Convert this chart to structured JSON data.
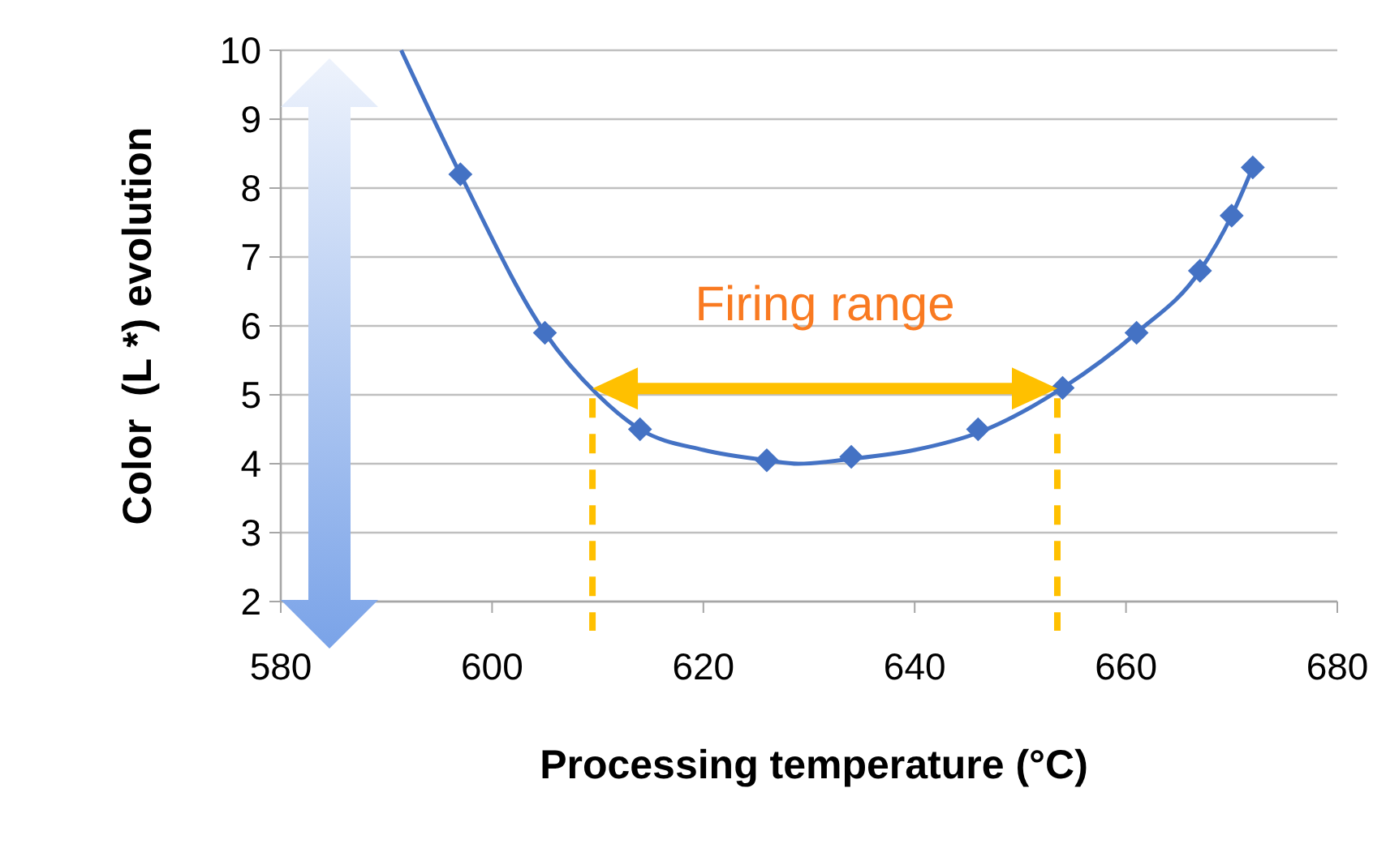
{
  "chart_data": {
    "type": "scatter",
    "xlabel": "Processing temperature (°C)",
    "ylabel": "Color  (L *) evolution",
    "series": [
      {
        "type": "line",
        "color": "#4472c4",
        "marker": "none",
        "x": [
          591.4,
          597,
          605,
          610,
          614,
          620,
          626,
          629,
          634,
          640,
          646,
          654,
          661,
          667,
          670,
          672
        ],
        "values": [
          10,
          8.2,
          5.9,
          5.0,
          4.5,
          4.2,
          4.05,
          4.0,
          4.07,
          4.2,
          4.45,
          5.1,
          5.9,
          6.8,
          7.6,
          8.3
        ]
      },
      {
        "color": "#4472c4",
        "marker": "diamond",
        "x": [
          597,
          605,
          614,
          626,
          634,
          646,
          654,
          661,
          667,
          670,
          672
        ],
        "values": [
          8.2,
          5.9,
          4.5,
          4.05,
          4.1,
          4.5,
          5.1,
          5.9,
          6.8,
          7.6,
          8.3
        ]
      }
    ],
    "xlim": [
      580,
      680
    ],
    "xticks": [
      580,
      600,
      620,
      640,
      660,
      680
    ],
    "ylim": [
      2,
      10
    ],
    "yticks": [
      2,
      3,
      4,
      5,
      6,
      7,
      8,
      9,
      10
    ],
    "grid": "y",
    "ref_lines": [
      {
        "axis": "x",
        "value": 609.5,
        "label": null,
        "color": "#ffc000",
        "line_style": "dashed"
      },
      {
        "axis": "x",
        "value": 653.5,
        "label": null,
        "color": "#ffc000",
        "line_style": "dashed"
      }
    ],
    "annotations": [
      "Firing range"
    ]
  }
}
